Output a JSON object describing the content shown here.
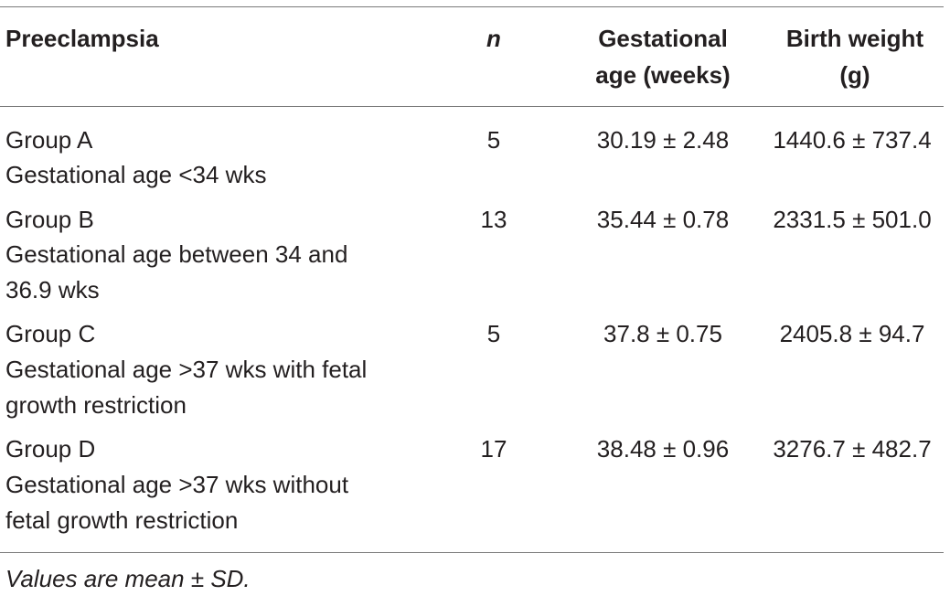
{
  "table": {
    "headers": {
      "preeclampsia": "Preeclampsia",
      "n": "n",
      "gestational_age_line1": "Gestational",
      "gestational_age_line2": "age (weeks)",
      "birth_weight_line1": "Birth weight",
      "birth_weight_line2": "(g)"
    },
    "rows": [
      {
        "group": "Group A",
        "description_lines": [
          "Gestational age <34 wks"
        ],
        "n": "5",
        "gestational_age": "30.19 ± 2.48",
        "birth_weight": "1440.6 ± 737.4"
      },
      {
        "group": "Group B",
        "description_lines": [
          "Gestational age between 34 and",
          "36.9 wks"
        ],
        "n": "13",
        "gestational_age": "35.44 ± 0.78",
        "birth_weight": "2331.5 ± 501.0"
      },
      {
        "group": "Group C",
        "description_lines": [
          "Gestational age >37 wks with fetal",
          "growth restriction"
        ],
        "n": "5",
        "gestational_age": "37.8 ± 0.75",
        "birth_weight": "2405.8 ± 94.7"
      },
      {
        "group": "Group D",
        "description_lines": [
          "Gestational age >37 wks without",
          "fetal growth restriction"
        ],
        "n": "17",
        "gestational_age": "38.48 ± 0.96",
        "birth_weight": "3276.7 ± 482.7"
      }
    ],
    "footnote": "Values are mean ± SD."
  }
}
